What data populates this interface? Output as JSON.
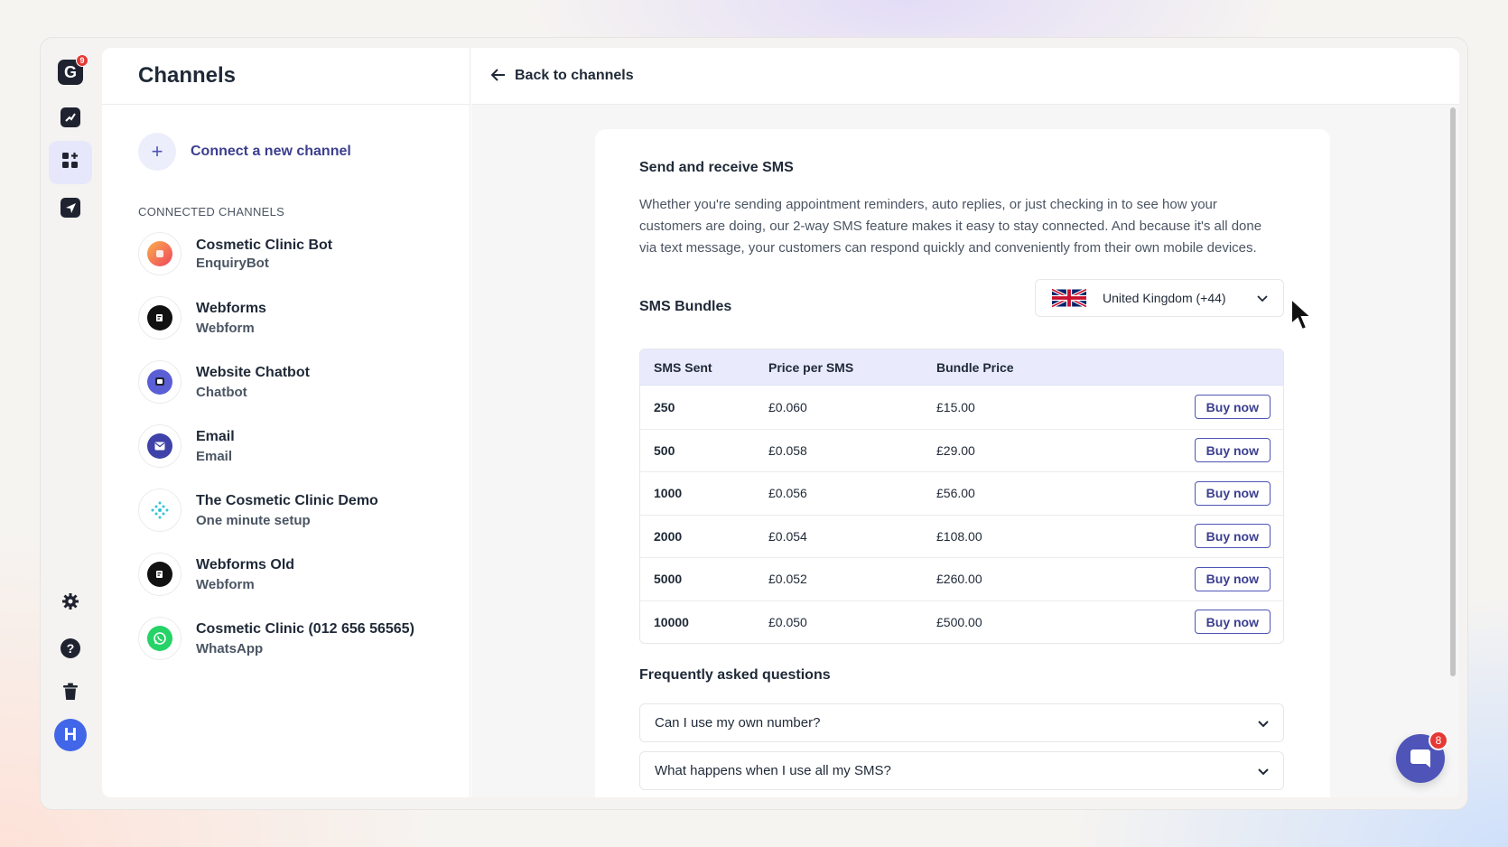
{
  "rail": {
    "logo_badge": "9",
    "avatar_initial": "H",
    "items": [
      {
        "icon": "analytics-icon"
      },
      {
        "icon": "channels-icon",
        "active": true
      },
      {
        "icon": "send-icon"
      }
    ],
    "bottom": [
      {
        "icon": "gear-icon"
      },
      {
        "icon": "help-icon"
      },
      {
        "icon": "trash-icon"
      }
    ]
  },
  "left_panel": {
    "title": "Channels",
    "connect_label": "Connect a new channel",
    "section_label": "CONNECTED CHANNELS",
    "channels": [
      {
        "name": "Cosmetic Clinic Bot",
        "sub": "EnquiryBot",
        "color": "#f56a63"
      },
      {
        "name": "Webforms",
        "sub": "Webform",
        "color": "#111111"
      },
      {
        "name": "Website Chatbot",
        "sub": "Chatbot",
        "color": "#5b5fd6"
      },
      {
        "name": "Email",
        "sub": "Email",
        "color": "#3f42a8"
      },
      {
        "name": "The Cosmetic Clinic Demo",
        "sub": "One minute setup",
        "color": "#ffffff"
      },
      {
        "name": "Webforms Old",
        "sub": "Webform",
        "color": "#111111"
      },
      {
        "name": "Cosmetic Clinic (012 656 56565)",
        "sub": "WhatsApp",
        "color": "#25d366"
      }
    ]
  },
  "header": {
    "back_label": "Back to channels"
  },
  "sms": {
    "title": "Send and receive SMS",
    "description": "Whether you're sending appointment reminders, auto replies, or just checking in to see how your customers are doing, our 2-way SMS feature makes it easy to stay connected. And because it's all done via text message, your customers can respond quickly and conveniently from their own mobile devices.",
    "bundles_label": "SMS Bundles",
    "country": "United Kingdom (+44)",
    "table": {
      "headers": [
        "SMS Sent",
        "Price per SMS",
        "Bundle Price"
      ],
      "buy_label": "Buy now",
      "rows": [
        {
          "sent": "250",
          "per": "£0.060",
          "bundle": "£15.00"
        },
        {
          "sent": "500",
          "per": "£0.058",
          "bundle": "£29.00"
        },
        {
          "sent": "1000",
          "per": "£0.056",
          "bundle": "£56.00"
        },
        {
          "sent": "2000",
          "per": "£0.054",
          "bundle": "£108.00"
        },
        {
          "sent": "5000",
          "per": "£0.052",
          "bundle": "£260.00"
        },
        {
          "sent": "10000",
          "per": "£0.050",
          "bundle": "£500.00"
        }
      ]
    },
    "faq_title": "Frequently asked questions",
    "faq": [
      {
        "q": "Can I use my own number?"
      },
      {
        "q": "What happens when I use all my SMS?"
      }
    ]
  },
  "chat_badge": "8",
  "colors": {
    "accent": "#4f54b8",
    "accent_text": "#3c3f8f",
    "table_header": "#e9eafc",
    "badge": "#e53935"
  }
}
